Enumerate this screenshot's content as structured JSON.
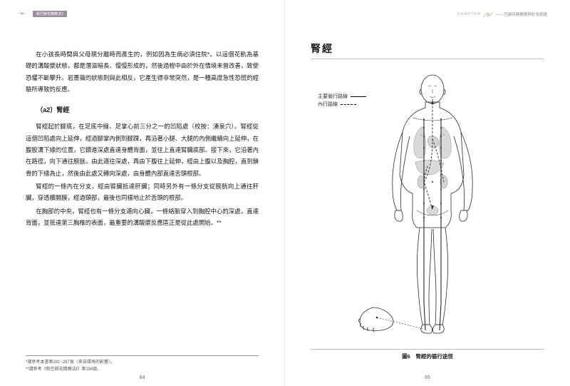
{
  "header": {
    "left_badge": "新巴赫花精療法3",
    "right_chapter": "CHAPTER",
    "right_num": "2",
    "right_text": "—— 巴赫花精療癒與針灸經絡"
  },
  "left": {
    "p1": "在小孩長時間與父母親分離時而產生的，例如因為生病必須住院*。以這個花軌為基礎的溝酸漿狀態，都是潛滋暗長、慢慢形成的，然後過程中由於外在情境未曾改善，致使恐懼不斷攀升。岩薔薇的狀態則與此相反，它產生得非常突然，是一種高度急性恐慌的經驗所導致的反應。",
    "section": "（a2）腎經",
    "p2": "腎經起於腳底，在足底中線、足掌心前三分之一的凹陷處（校按：湧泉穴）。腎經從這個凹陷處向上延伸，經過腳掌內側到腳踝，再沿著小腿、大腿的內側繼續向上延伸，在腹股溝下緣的位置，它鑽進深處直達身體背面，並往上直達腎臟底部。接下來，它沿著內在路徑，向下通往膀胱，由此邁往深處，再由下腹往上延伸，經由上腹以及胸腔，直到鎖骨的下緣為止，然後由此處又轉向深處，由身體內部直達舌頭根部。",
    "p3": "腎經的一條內在分支，經由腎臟抵達肝臟；同時另外有一條分支從膀胱向上通往肝臟，穿透橫膈膜，經過頸部，最後也同樣地止於舌頭的根部。",
    "p4": "在胸部的中央，腎經也有一條分支邁向心臟，一條絡脈穿入到胸腔中心的深處，直達背面，並抵達第三胸椎的表面，最重要的溝酸漿反應區正是從此處開始。**",
    "fn1": "*請參考本書第281~287頁〈來自環境的影響〉。",
    "fn2": "**請參考《新巴赫花精療法I》第194頁。",
    "page_num": "64"
  },
  "right": {
    "title": "腎經",
    "legend_main": "主要循行路線",
    "legend_inner": "內行路線",
    "caption": "圖6　腎經的循行途徑",
    "page_num": "65"
  },
  "figure": {
    "stroke_color": "#2b2b2b",
    "stroke_width": 0.8,
    "dash_pattern": "3,2",
    "organ_fill": "#d0d0d0",
    "organ_stroke": "#777"
  }
}
